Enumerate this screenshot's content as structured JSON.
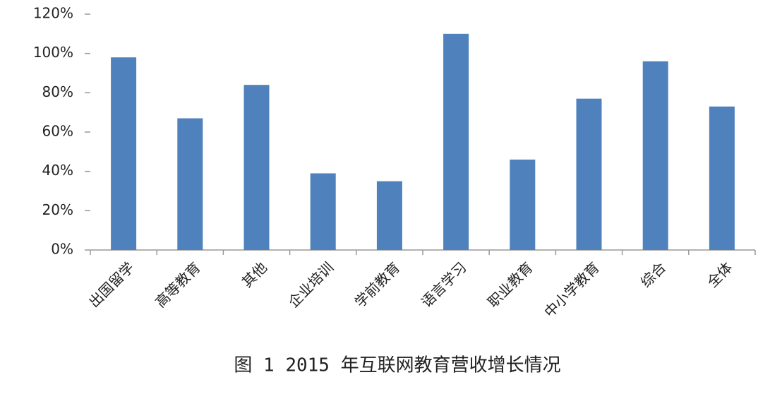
{
  "chart_data": {
    "type": "bar",
    "title": "图 1 2015 年互联网教育营收增长情况",
    "categories": [
      "出国留学",
      "高等教育",
      "其他",
      "企业培训",
      "学前教育",
      "语言学习",
      "职业教育",
      "中小学教育",
      "综合",
      "全体"
    ],
    "values": [
      98,
      67,
      84,
      39,
      35,
      110,
      46,
      77,
      96,
      73
    ],
    "color": "#4f81bd",
    "ylim": [
      0,
      120
    ],
    "yticks": [
      {
        "value": 0,
        "label": "0%"
      },
      {
        "value": 20,
        "label": "20%"
      },
      {
        "value": 40,
        "label": "40%"
      },
      {
        "value": 60,
        "label": "60%"
      },
      {
        "value": 80,
        "label": "80%"
      },
      {
        "value": 100,
        "label": "100%"
      },
      {
        "value": 120,
        "label": "120%"
      }
    ],
    "grid": false
  }
}
